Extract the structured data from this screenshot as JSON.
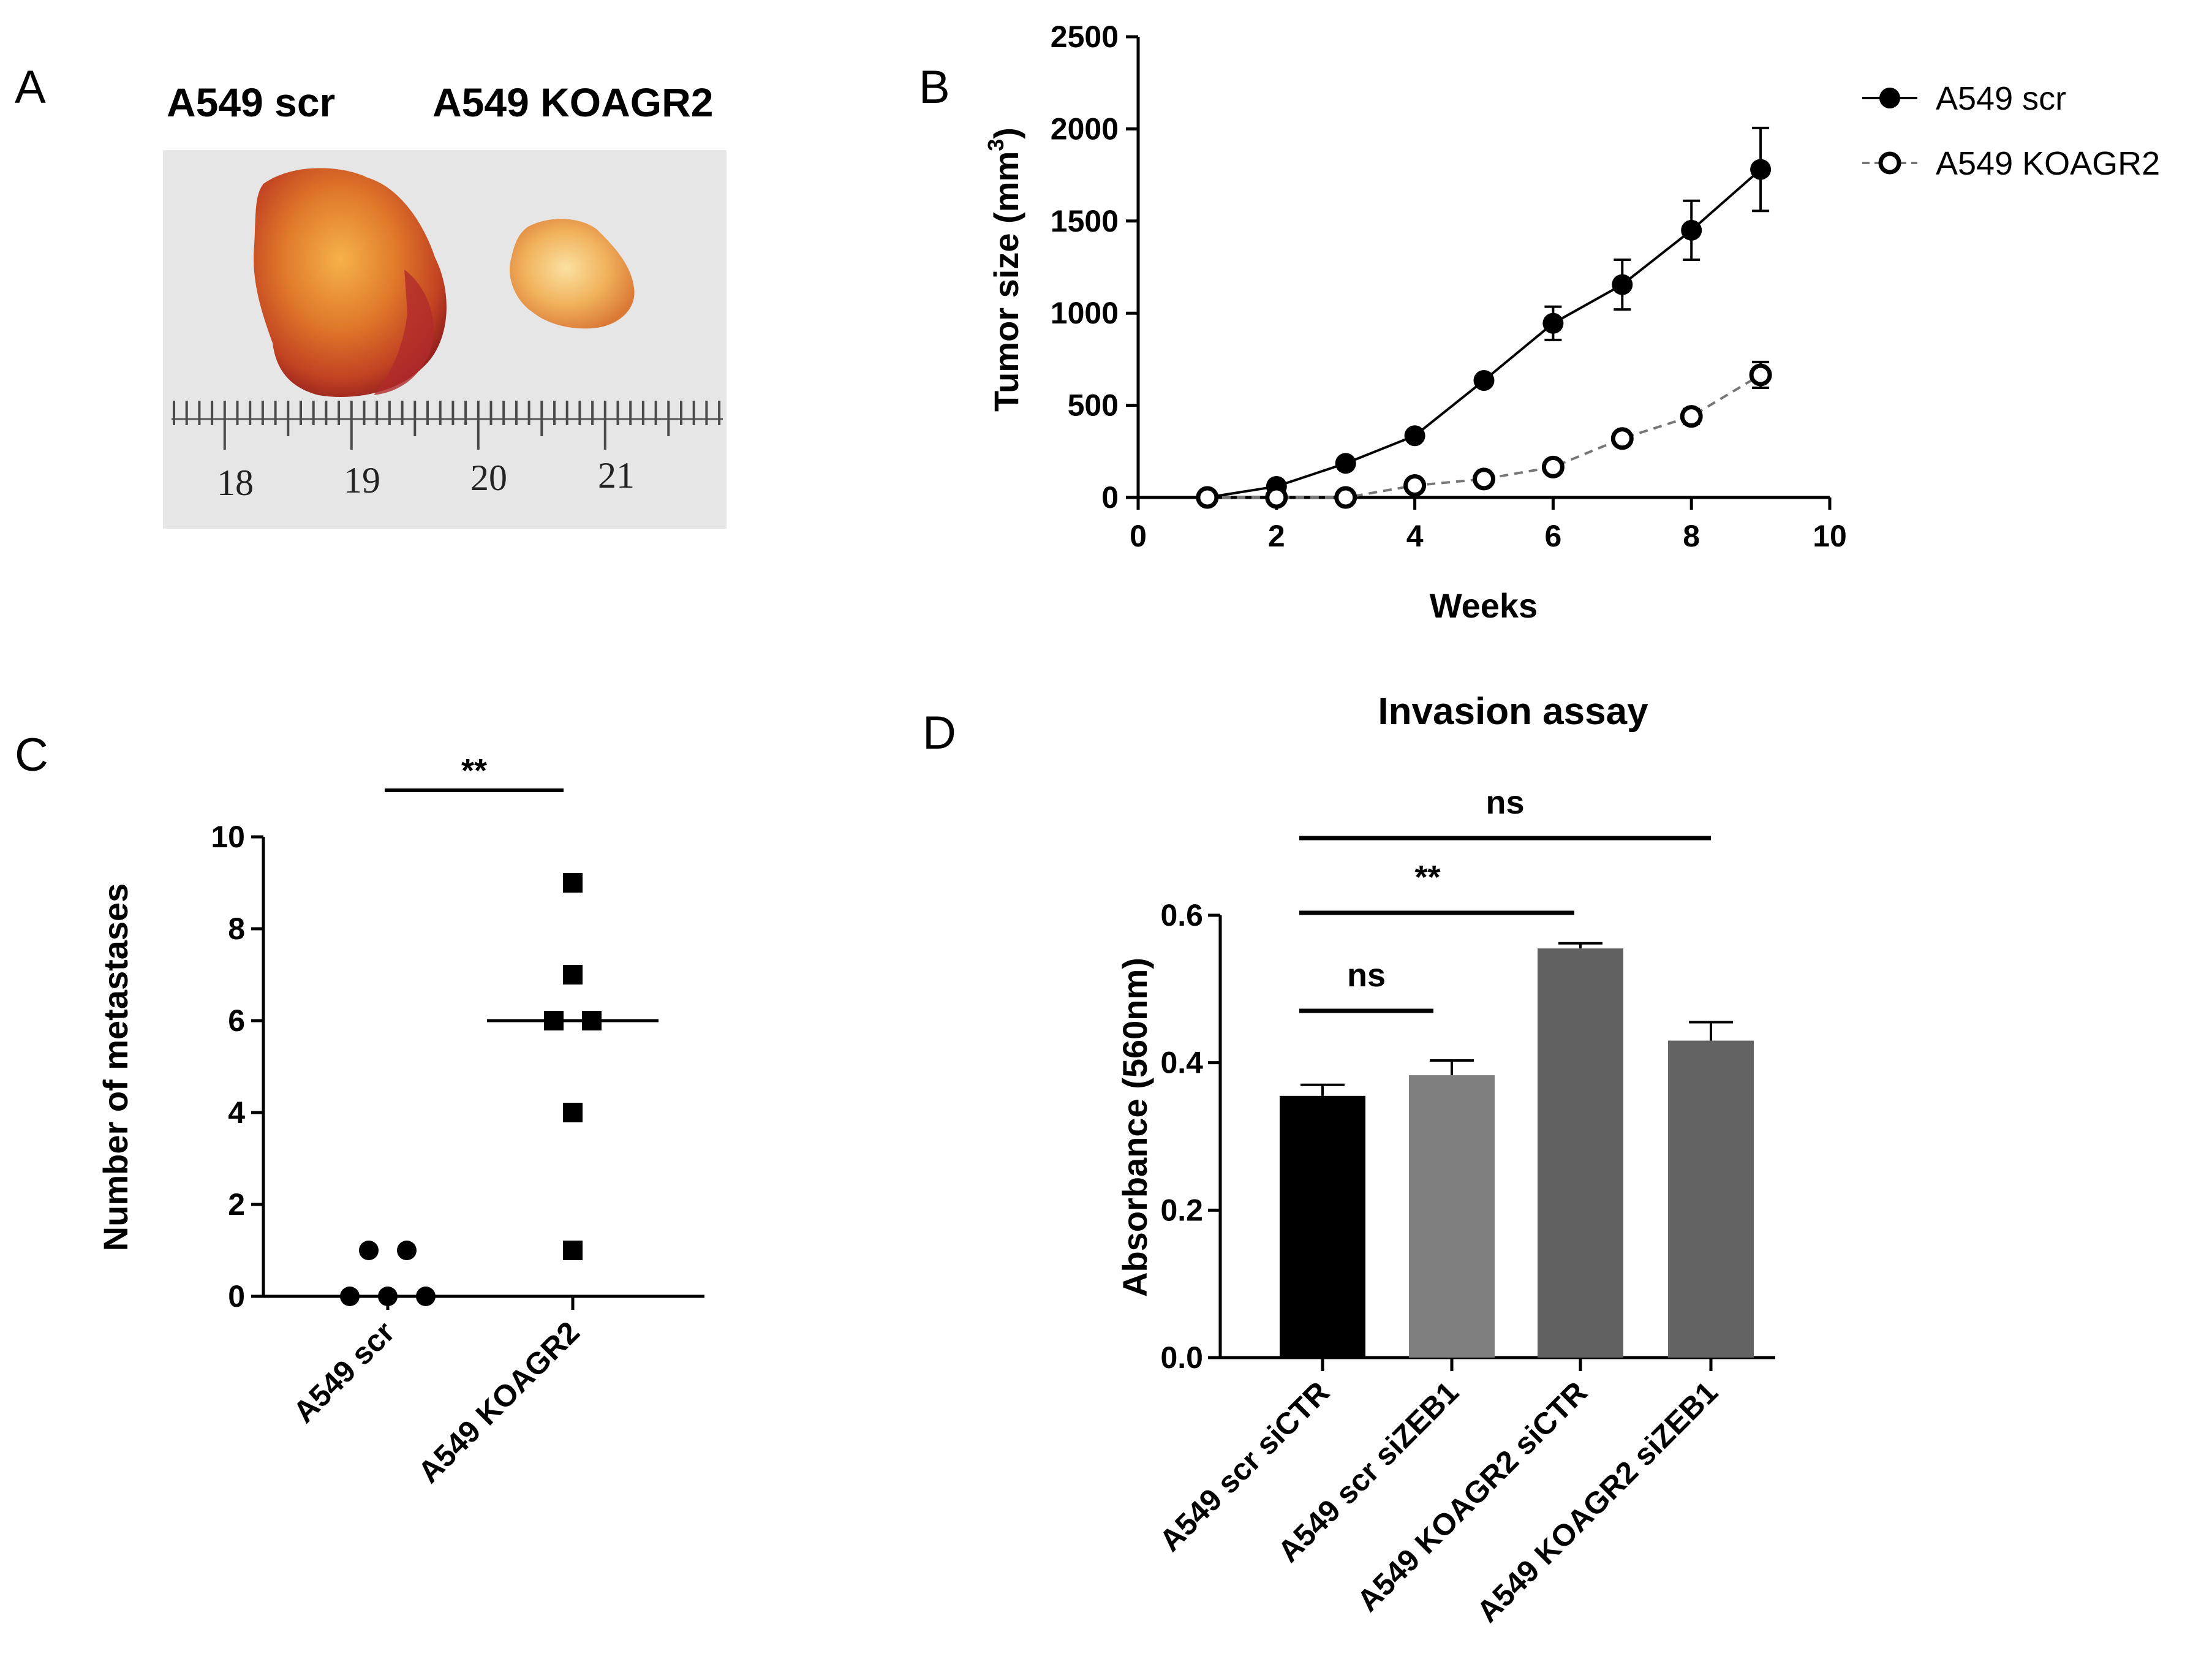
{
  "panels": {
    "a": {
      "letter": "A",
      "labels": [
        "A549 scr",
        "A549 KOAGR2"
      ],
      "ruler_numbers": [
        "18",
        "19",
        "20",
        "21"
      ]
    },
    "b": {
      "letter": "B"
    },
    "c": {
      "letter": "C"
    },
    "d": {
      "letter": "D"
    }
  },
  "chart_data": [
    {
      "id": "b",
      "type": "line",
      "xlabel": "Weeks",
      "ylabel": "Tumor size (mm",
      "ylabel_sup": "3",
      "ylabel_end": ")",
      "xlim": [
        0,
        10
      ],
      "ylim": [
        0,
        2500
      ],
      "xticks": [
        0,
        2,
        4,
        6,
        8,
        10
      ],
      "yticks": [
        0,
        500,
        1000,
        1500,
        2000,
        2500
      ],
      "legend_position": "top-right",
      "series": [
        {
          "name": "A549 scr",
          "marker": "filled-circle",
          "line": "solid",
          "x": [
            1,
            2,
            3,
            4,
            5,
            6,
            7,
            8,
            9
          ],
          "y": [
            0,
            60,
            185,
            335,
            635,
            945,
            1155,
            1450,
            1780
          ],
          "err": [
            0,
            0,
            0,
            0,
            0,
            90,
            135,
            160,
            225
          ]
        },
        {
          "name": "A549 KOAGR2",
          "marker": "open-circle",
          "line": "dashed",
          "x": [
            1,
            2,
            3,
            4,
            5,
            6,
            7,
            8,
            9
          ],
          "y": [
            0,
            0,
            0,
            65,
            100,
            165,
            320,
            440,
            665
          ],
          "err": [
            0,
            0,
            0,
            0,
            0,
            0,
            25,
            40,
            70
          ]
        }
      ]
    },
    {
      "id": "c",
      "type": "scatter",
      "ylabel": "Number of metastases",
      "ylim": [
        0,
        10
      ],
      "yticks": [
        0,
        2,
        4,
        6,
        8,
        10
      ],
      "categories": [
        "A549 scr",
        "A549 KOAGR2"
      ],
      "groups": [
        {
          "category": "A549 scr",
          "marker": "circle",
          "values": [
            1,
            1,
            0,
            0,
            0
          ],
          "median": 0
        },
        {
          "category": "A549 KOAGR2",
          "marker": "square",
          "values": [
            9,
            7,
            6,
            6,
            4,
            1
          ],
          "median": 6
        }
      ],
      "significance": [
        {
          "from": 0,
          "to": 1,
          "label": "**"
        }
      ]
    },
    {
      "id": "d",
      "type": "bar",
      "title": "Invasion assay",
      "ylabel": "Absorbance (560nm)",
      "ylim": [
        0,
        0.6
      ],
      "yticks": [
        "0.0",
        "0.2",
        "0.4",
        "0.6"
      ],
      "categories": [
        "A549 scr siCTR",
        "A549 scr siZEB1",
        "A549 KOAGR2 siCTR",
        "A549 KOAGR2 siZEB1"
      ],
      "values": [
        0.355,
        0.383,
        0.555,
        0.43
      ],
      "errors": [
        0.015,
        0.02,
        0.007,
        0.025
      ],
      "colors": [
        "#000000",
        "#7f7f7f",
        "#616161",
        "#636363"
      ],
      "significance": [
        {
          "from": 0,
          "to": 1,
          "label": "ns"
        },
        {
          "from": 0,
          "to": 2,
          "label": "**"
        },
        {
          "from": 0,
          "to": 3,
          "label": "ns"
        }
      ]
    }
  ]
}
